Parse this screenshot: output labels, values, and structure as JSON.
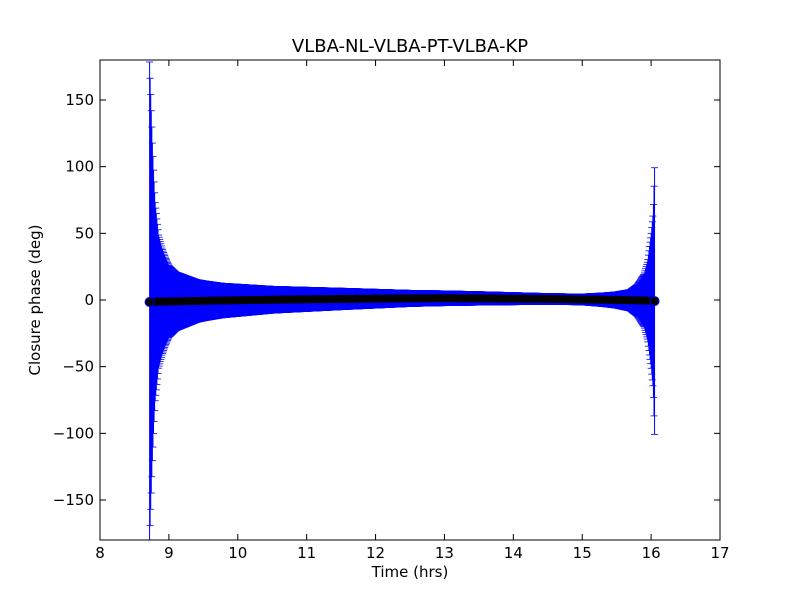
{
  "chart_data": {
    "type": "scatter",
    "title": "VLBA-NL-VLBA-PT-VLBA-KP",
    "xlabel": "Time (hrs)",
    "ylabel": "Closure phase (deg)",
    "xlim": [
      8,
      17
    ],
    "ylim": [
      -180,
      180
    ],
    "xticks": [
      "8",
      "9",
      "10",
      "11",
      "12",
      "13",
      "14",
      "15",
      "16",
      "17"
    ],
    "yticks": [
      "−150",
      "−100",
      "−50",
      "0",
      "50",
      "100",
      "150"
    ],
    "xtick_values": [
      8,
      9,
      10,
      11,
      12,
      13,
      14,
      15,
      16,
      17
    ],
    "ytick_values": [
      -150,
      -100,
      -50,
      0,
      50,
      100,
      150
    ],
    "grid": false,
    "legend": "none",
    "colors": {
      "errorbar": "#0000ff",
      "marker": "#000000",
      "axes": "#000000"
    },
    "series": [
      {
        "x": [
          8.72,
          8.74,
          8.76,
          8.78,
          8.8,
          8.85,
          8.9,
          8.95,
          9.0,
          9.1,
          9.2,
          9.3,
          9.4,
          9.5,
          9.75,
          10.0,
          10.5,
          11.0,
          11.5,
          12.0,
          12.5,
          13.0,
          13.5,
          14.0,
          14.5,
          15.0,
          15.3,
          15.5,
          15.7,
          15.8,
          15.9,
          15.95,
          16.0,
          16.03,
          16.05
        ],
        "y": [
          -1.5,
          -1.4,
          -1.4,
          -1.3,
          -1.3,
          -1.2,
          -1.2,
          -1.1,
          -1.1,
          -1.0,
          -0.9,
          -0.8,
          -0.7,
          -0.6,
          -0.4,
          -0.2,
          0.2,
          0.5,
          0.8,
          1.0,
          1.2,
          1.3,
          1.2,
          1.0,
          0.8,
          0.4,
          0.2,
          0.0,
          -0.2,
          -0.3,
          -0.4,
          -0.5,
          -0.6,
          -0.7,
          -0.8
        ],
        "yerr": [
          180,
          150,
          120,
          95,
          75,
          50,
          40,
          33,
          27,
          22,
          20,
          18,
          16,
          15,
          13,
          12,
          10,
          9,
          8,
          7,
          6,
          5.5,
          5,
          4.5,
          4,
          4,
          5,
          6,
          8,
          12,
          20,
          30,
          50,
          66,
          100
        ]
      }
    ]
  }
}
